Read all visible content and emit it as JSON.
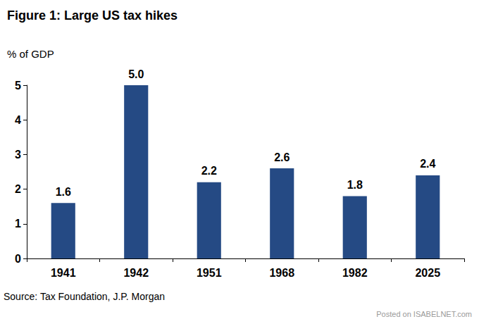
{
  "chart_data": {
    "type": "bar",
    "title": "Figure 1: Large US tax hikes",
    "subtitle": "% of GDP",
    "categories": [
      "1941",
      "1942",
      "1951",
      "1968",
      "1982",
      "2025"
    ],
    "values": [
      1.6,
      5.0,
      2.2,
      2.6,
      1.8,
      2.4
    ],
    "value_labels": [
      "1.6",
      "5.0",
      "2.2",
      "2.6",
      "1.8",
      "2.4"
    ],
    "color": "#254a84",
    "ylim": [
      0,
      5
    ],
    "yticks": [
      0,
      1,
      2,
      3,
      4,
      5
    ],
    "grid": false,
    "data_labels": true,
    "source": "Source: Tax Foundation, J.P. Morgan",
    "watermark": "Posted on ISABELNET.com"
  }
}
